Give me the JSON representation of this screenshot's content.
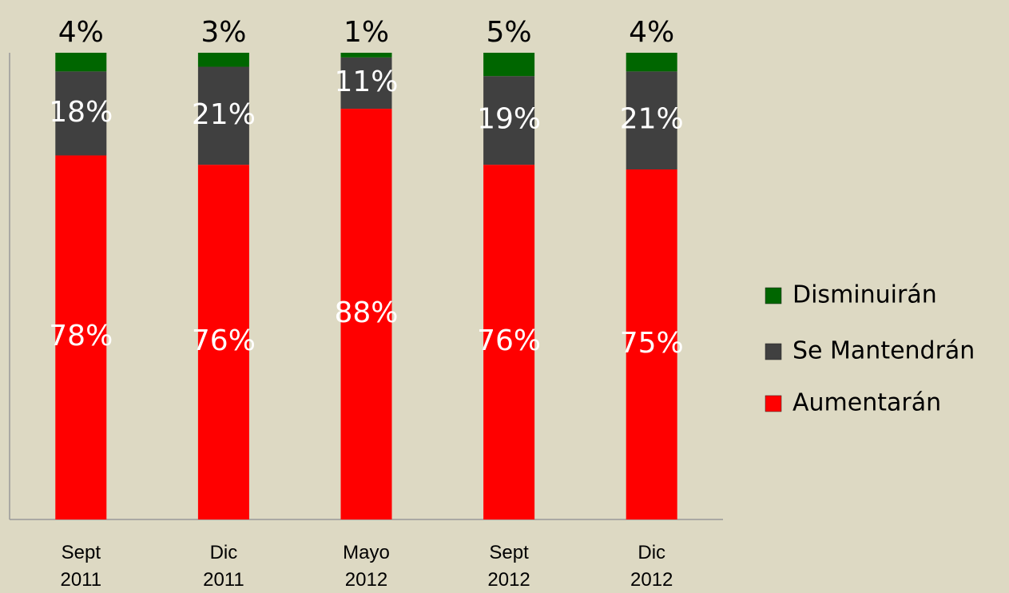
{
  "chart_data": {
    "type": "stacked_bar",
    "categories": [
      "Sept 2011",
      "Dic 2011",
      "Mayo 2012",
      "Sept 2012",
      "Dic 2012"
    ],
    "ylim": [
      0,
      100
    ],
    "series": [
      {
        "name": "Aumentarán",
        "color": "#ff0000",
        "values": [
          78,
          76,
          88,
          76,
          75
        ],
        "value_labels": [
          "78%",
          "76%",
          "88%",
          "76%",
          "75%"
        ]
      },
      {
        "name": "Se Mantendrán",
        "color": "#404040",
        "values": [
          18,
          21,
          11,
          19,
          21
        ],
        "value_labels": [
          "18%",
          "21%",
          "11%",
          "19%",
          "21%"
        ]
      },
      {
        "name": "Disminuirán",
        "color": "#006600",
        "values": [
          4,
          3,
          1,
          5,
          4
        ],
        "value_labels": [
          "4%",
          "3%",
          "1%",
          "5%",
          "4%"
        ]
      }
    ]
  }
}
